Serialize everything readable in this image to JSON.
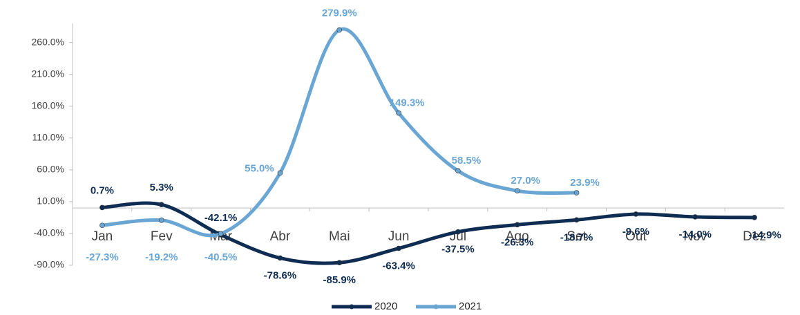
{
  "chart_data": {
    "type": "line",
    "categories": [
      "Jan",
      "Fev",
      "Mar",
      "Abr",
      "Mai",
      "Jun",
      "Jul",
      "Ago",
      "Set",
      "Out",
      "Nov",
      "Dez"
    ],
    "series": [
      {
        "name": "2020",
        "color": "#0f2d52",
        "values": [
          0.7,
          5.3,
          -42.1,
          -78.6,
          -85.9,
          -63.4,
          -37.5,
          -26.3,
          -18.7,
          -9.6,
          -14.0,
          -14.9
        ],
        "value_labels": [
          "0.7%",
          "5.3%",
          "-42.1%",
          "-78.6%",
          "-85.9%",
          "-63.4%",
          "-37.5%",
          "-26.3%",
          "-18.7%",
          "-9.6%",
          "-14.0%",
          "-14.9%"
        ]
      },
      {
        "name": "2021",
        "color": "#6aa6d4",
        "values": [
          -27.3,
          -19.2,
          -40.5,
          55.0,
          279.9,
          149.3,
          58.5,
          27.0,
          23.9,
          null,
          null,
          null
        ],
        "value_labels": [
          "-27.3%",
          "-19.2%",
          "-40.5%",
          "55.0%",
          "279.9%",
          "149.3%",
          "58.5%",
          "27.0%",
          "23.9%",
          null,
          null,
          null
        ]
      }
    ],
    "ylim": [
      -90,
      290
    ],
    "yticks": [
      {
        "value": -90,
        "label": "-90.0%"
      },
      {
        "value": -40,
        "label": "-40.0%"
      },
      {
        "value": 10,
        "label": "10.0%"
      },
      {
        "value": 60,
        "label": "60.0%"
      },
      {
        "value": 110,
        "label": "110.0%"
      },
      {
        "value": 160,
        "label": "160.0%"
      },
      {
        "value": 210,
        "label": "210.0%"
      },
      {
        "value": 260,
        "label": "260.0%"
      }
    ],
    "legend": "bottom"
  }
}
